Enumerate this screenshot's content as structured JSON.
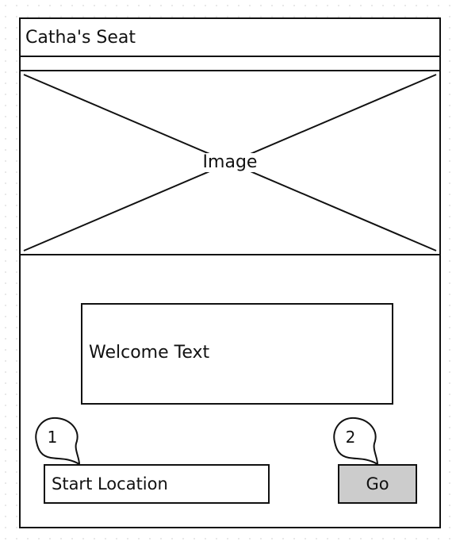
{
  "window": {
    "title": "Catha's Seat"
  },
  "hero": {
    "image_label": "Image",
    "icon": "image-placeholder-icon"
  },
  "welcome": {
    "text": "Welcome Text"
  },
  "form": {
    "start_location_placeholder": "Start Location",
    "go_label": "Go"
  },
  "callouts": [
    {
      "number": "1"
    },
    {
      "number": "2"
    }
  ],
  "colors": {
    "stroke": "#111111",
    "button_fill": "#cccccc",
    "background": "#ffffff"
  }
}
